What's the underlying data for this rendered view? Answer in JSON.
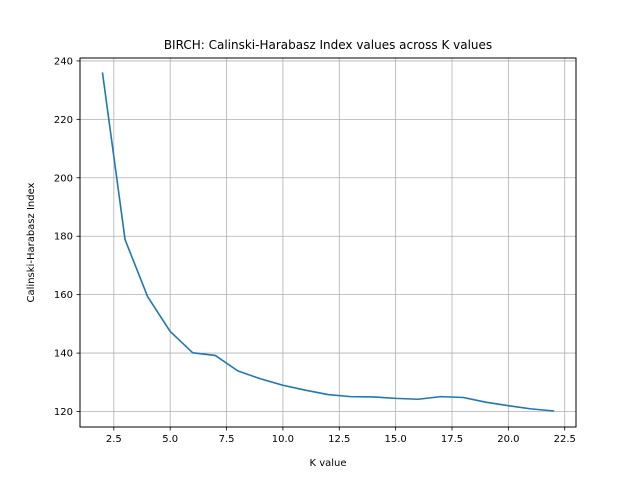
{
  "chart_data": {
    "type": "line",
    "title": "BIRCH: Calinski-Harabasz Index values across K values",
    "xlabel": "K value",
    "ylabel": "Calinski-Harabasz Index",
    "xlim": [
      1.0,
      23.0
    ],
    "ylim": [
      114.7,
      241.0
    ],
    "xticks": [
      2.5,
      5.0,
      7.5,
      10.0,
      12.5,
      15.0,
      17.5,
      20.0,
      22.5
    ],
    "xtick_labels": [
      "2.5",
      "5.0",
      "7.5",
      "10.0",
      "12.5",
      "15.0",
      "17.5",
      "20.0",
      "22.5"
    ],
    "yticks": [
      120,
      140,
      160,
      180,
      200,
      220,
      240
    ],
    "ytick_labels": [
      "120",
      "140",
      "160",
      "180",
      "200",
      "220",
      "240"
    ],
    "grid": true,
    "series": [
      {
        "color": "#1f77b4",
        "x": [
          2,
          3,
          4,
          5,
          6,
          7,
          8,
          9,
          10,
          11,
          12,
          13,
          14,
          15,
          16,
          17,
          18,
          19,
          20,
          21,
          22
        ],
        "y": [
          235.8,
          178.8,
          159.3,
          147.4,
          140.1,
          139.2,
          133.9,
          131.2,
          129.0,
          127.3,
          125.8,
          125.1,
          125.0,
          124.5,
          124.2,
          125.1,
          124.8,
          123.2,
          122.0,
          120.9,
          120.2
        ]
      }
    ]
  }
}
